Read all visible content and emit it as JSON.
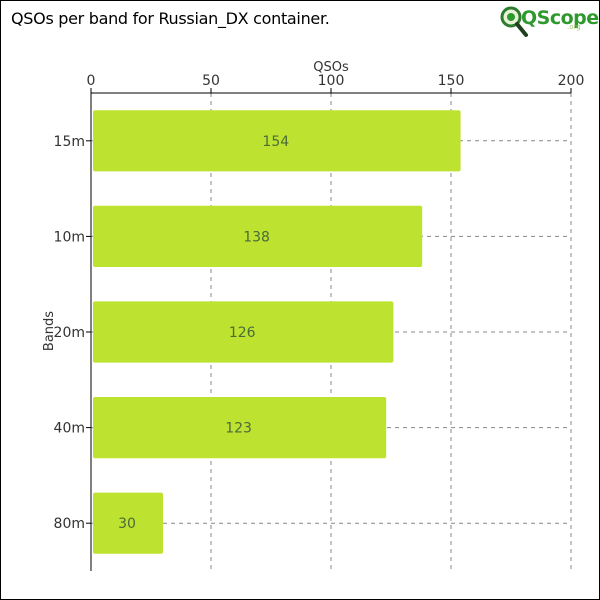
{
  "page": {
    "title": "QSOs per band for Russian_DX container.",
    "logo": {
      "main": "QScope",
      "sub": ".org"
    }
  },
  "colors": {
    "bar": "#bde330",
    "bar_label": "#4a6a3a",
    "grid": "#888888",
    "axis": "#000000"
  },
  "chart_data": {
    "type": "bar",
    "orientation": "horizontal",
    "categories": [
      "15m",
      "10m",
      "20m",
      "40m",
      "80m"
    ],
    "values": [
      154,
      138,
      126,
      123,
      30
    ],
    "xlabel": "QSOs",
    "ylabel": "Bands",
    "xlim": [
      0,
      200
    ],
    "xticks": [
      0,
      50,
      100,
      150,
      200
    ],
    "x_axis_position": "top",
    "grid": true,
    "data_labels": true
  }
}
